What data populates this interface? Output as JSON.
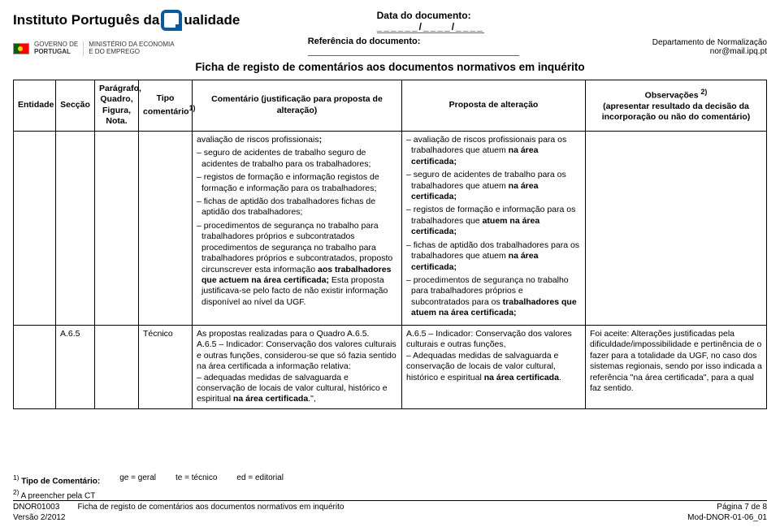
{
  "header": {
    "org_before_q": "Instituto Português da",
    "org_after_q": "ualidade",
    "date_label": "Data do documento:",
    "date_sep": "______/____/____",
    "ref_label": "Referência do documento:",
    "dept1": "Departamento de Normalização",
    "dept2": "nor@mail.ipq.pt",
    "gov_line1": "GOVERNO DE",
    "gov_line2": "PORTUGAL",
    "min_line1": "MINISTÉRIO DA ECONOMIA",
    "min_line2": "E DO EMPREGO"
  },
  "title": "Ficha de registo de comentários aos documentos normativos em inquérito",
  "cols": {
    "entidade": "Entidade",
    "seccao": "Secção",
    "paragrafo": "Parágrafo, Quadro, Figura, Nota.",
    "tipo_html": "Tipo comentário<sup>1)</sup>",
    "comentario": "Comentário (justificação para proposta de alteração)",
    "proposta": "Proposta de alteração",
    "obs_html": "Observações <sup>2)</sup><br>(apresentar resultado da decisão da incorporação ou não do comentário)"
  },
  "row1": {
    "com": [
      "avaliação de riscos profissionais<b>;</b>",
      "– seguro de acidentes de trabalho seguro de acidentes de trabalho para os trabalhadores;",
      "– registos de formação e informação registos de formação e informação para os trabalhadores;",
      "– fichas de aptidão dos trabalhadores fichas de aptidão dos trabalhadores;",
      "– procedimentos de segurança no trabalho para trabalhadores próprios e subcontratados procedimentos de segurança no trabalho para trabalhadores próprios e subcontratados, proposto circunscrever esta informação <b>aos trabalhadores que actuem na área certificada;</b> Esta proposta justificava-se pelo facto de não existir informação disponível ao nível da UGF."
    ],
    "prop": [
      "– avaliação de riscos profissionais para os trabalhadores que atuem <b>na área certificada;</b>",
      "– seguro de acidentes de trabalho para os trabalhadores que atuem <b>na área certificada;</b>",
      "– registos de formação e informação para os trabalhadores que <b>atuem na área certificada;</b>",
      "– fichas de aptidão dos trabalhadores para os trabalhadores que atuem <b>na área certificada;</b>",
      "– procedimentos de segurança no trabalho para trabalhadores próprios e subcontratados para os <b>trabalhadores que atuem na área certificada;</b>"
    ]
  },
  "row2": {
    "seccao": "A.6.5",
    "tipo": "Técnico",
    "com": "As propostas realizadas para o Quadro A.6.5.<br>A.6.5 – Indicador: Conservação dos valores culturais e outras funções, considerou-se que só fazia sentido na área certificada a informação relativa:<br>– adequadas medidas de salvaguarda e conservação de locais de valor cultural, histórico e espiritual <b>na área certificada</b>.\",",
    "prop": "A.6.5 – Indicador: Conservação dos valores culturais e outras funções,<br>– Adequadas medidas de salvaguarda e conservação de locais de valor cultural, histórico e espiritual <b>na área certificada</b>.",
    "obs": "Foi aceite: Alterações justificadas pela dificuldade/impossibilidade e pertinência de o fazer para a totalidade da UGF, no caso dos sistemas regionais, sendo por isso indicada a referência \"na área certificada\", para a qual faz sentido."
  },
  "footer": {
    "tipo_label_html": "<sup>1)</sup> <b>Tipo de Comentário:</b>",
    "ge": "ge = geral",
    "te": "te = técnico",
    "ed": "ed = editorial",
    "preen_html": "<sup>2)</sup> A preencher pela CT",
    "code": "DNOR01003",
    "ficha": "Ficha de registo de comentários aos documentos normativos em inquérito",
    "pagina": "Página 7 de 8",
    "versao": "Versão 2/2012",
    "mod": "Mod-DNOR-01-06_01"
  }
}
